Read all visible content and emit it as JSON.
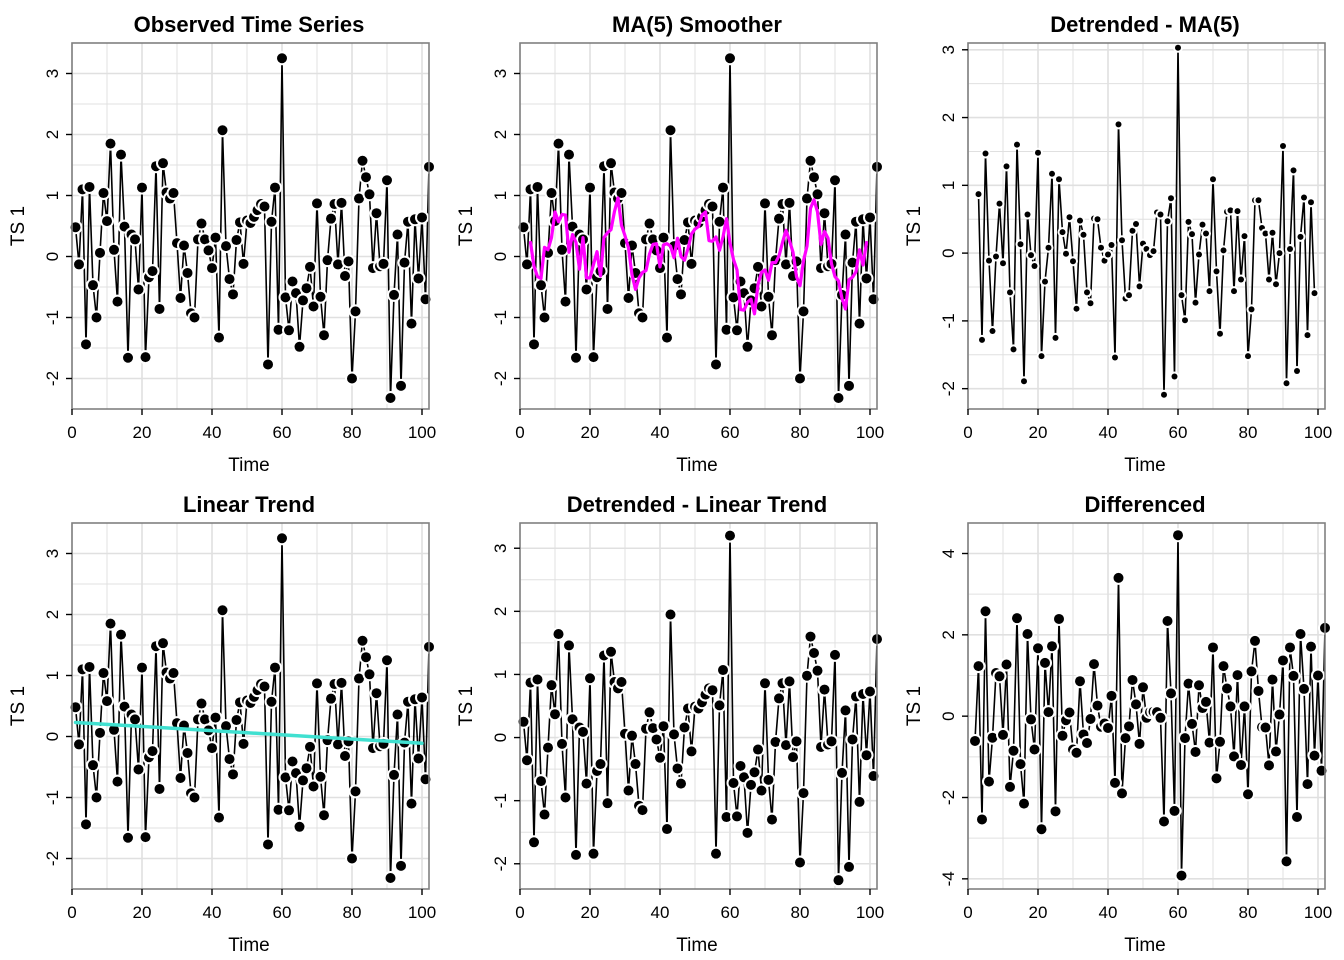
{
  "figure": {
    "background": "#ffffff",
    "grid_color": "#e0e0e0",
    "frame_color": "#808080"
  },
  "chart_data": [
    {
      "type": "line",
      "title": "Observed Time Series",
      "xlabel": "Time",
      "ylabel": "TS 1",
      "xlim": [
        0,
        102
      ],
      "ylim": [
        -2.5,
        3.5
      ],
      "xticks": [
        0,
        20,
        40,
        60,
        80,
        100
      ],
      "yticks": [
        -2,
        -1,
        0,
        1,
        2,
        3
      ],
      "grid": true,
      "marker": "point-large",
      "x_start": 1,
      "series": [
        {
          "values": [
            0.48,
            -0.13,
            1.1,
            -1.44,
            1.14,
            -0.47,
            -1.0,
            0.06,
            1.04,
            0.58,
            1.85,
            0.11,
            -0.74,
            1.67,
            0.49,
            -1.66,
            0.36,
            0.28,
            -0.54,
            1.13,
            -1.65,
            -0.34,
            -0.24,
            1.48,
            -0.86,
            1.53,
            1.05,
            0.95,
            1.04,
            0.22,
            -0.68,
            0.18,
            -0.27,
            -0.93,
            -1.0,
            0.28,
            0.54,
            0.28,
            0.1,
            -0.19,
            0.31,
            -1.33,
            2.07,
            0.17,
            -0.37,
            -0.62,
            0.27,
            0.56,
            -0.12,
            0.59,
            0.55,
            0.65,
            0.76,
            0.86,
            0.82,
            -1.77,
            0.57,
            1.13,
            -1.2,
            3.25,
            -0.67,
            -1.21,
            -0.41,
            -0.6,
            -1.48,
            -0.72,
            -0.52,
            -0.17,
            -0.82,
            0.87,
            -0.66,
            -1.29,
            -0.06,
            0.62,
            0.86,
            -0.13,
            0.88,
            -0.32,
            -0.08,
            -2.0,
            -0.9,
            0.95,
            1.57,
            1.3,
            1.02,
            -0.19,
            0.71,
            -0.16,
            -0.12,
            1.25,
            -2.32,
            -0.63,
            0.36,
            -2.12,
            -0.1,
            0.57,
            -1.1,
            0.61,
            -0.36,
            0.64,
            -0.7,
            1.47
          ],
          "color": "#000000"
        }
      ]
    },
    {
      "type": "line",
      "title": "MA(5) Smoother",
      "xlabel": "Time",
      "ylabel": "TS 1",
      "xlim": [
        0,
        102
      ],
      "ylim": [
        -2.5,
        3.5
      ],
      "xticks": [
        0,
        20,
        40,
        60,
        80,
        100
      ],
      "yticks": [
        -2,
        -1,
        0,
        1,
        2,
        3
      ],
      "grid": true,
      "marker": "point-large",
      "x_start": 1,
      "series": [
        {
          "values": [
            0.48,
            -0.13,
            1.1,
            -1.44,
            1.14,
            -0.47,
            -1.0,
            0.06,
            1.04,
            0.58,
            1.85,
            0.11,
            -0.74,
            1.67,
            0.49,
            -1.66,
            0.36,
            0.28,
            -0.54,
            1.13,
            -1.65,
            -0.34,
            -0.24,
            1.48,
            -0.86,
            1.53,
            1.05,
            0.95,
            1.04,
            0.22,
            -0.68,
            0.18,
            -0.27,
            -0.93,
            -1.0,
            0.28,
            0.54,
            0.28,
            0.1,
            -0.19,
            0.31,
            -1.33,
            2.07,
            0.17,
            -0.37,
            -0.62,
            0.27,
            0.56,
            -0.12,
            0.59,
            0.55,
            0.65,
            0.76,
            0.86,
            0.82,
            -1.77,
            0.57,
            1.13,
            -1.2,
            3.25,
            -0.67,
            -1.21,
            -0.41,
            -0.6,
            -1.48,
            -0.72,
            -0.52,
            -0.17,
            -0.82,
            0.87,
            -0.66,
            -1.29,
            -0.06,
            0.62,
            0.86,
            -0.13,
            0.88,
            -0.32,
            -0.08,
            -2.0,
            -0.9,
            0.95,
            1.57,
            1.3,
            1.02,
            -0.19,
            0.71,
            -0.16,
            -0.12,
            1.25,
            -2.32,
            -0.63,
            0.36,
            -2.12,
            -0.1,
            0.57,
            -1.1,
            0.61,
            -0.36,
            0.64,
            -0.7,
            1.47
          ],
          "color": "#000000"
        },
        {
          "values": [
            null,
            null,
            0.23,
            -0.16,
            -0.33,
            -0.36,
            0.15,
            0.11,
            0.31,
            0.73,
            0.57,
            0.69,
            0.68,
            0.07,
            0.36,
            0.23,
            -0.21,
            0.31,
            -0.35,
            -0.35,
            -0.13,
            0.08,
            -0.32,
            0.31,
            0.39,
            0.44,
            0.74,
            0.96,
            0.51,
            0.34,
            0.14,
            -0.3,
            -0.54,
            -0.35,
            -0.26,
            -0.23,
            0.04,
            0.2,
            0.21,
            -0.17,
            0.19,
            0.21,
            0.17,
            -0.02,
            0.3,
            0.0,
            -0.06,
            0.13,
            0.37,
            0.45,
            0.49,
            0.68,
            0.73,
            0.26,
            0.25,
            0.32,
            0.1,
            0.32,
            0.62,
            0.22,
            -0.05,
            -0.22,
            -0.87,
            -0.88,
            -0.75,
            -0.7,
            -0.94,
            -0.46,
            -0.26,
            -0.22,
            -0.39,
            -0.1,
            -0.1,
            0.01,
            0.23,
            0.43,
            0.26,
            0.07,
            -0.33,
            -0.48,
            -0.07,
            0.17,
            0.79,
            0.93,
            0.73,
            0.2,
            0.41,
            0.3,
            -0.12,
            -0.33,
            -0.4,
            -0.69,
            -0.86,
            -0.38,
            -0.34,
            -0.25,
            0.11,
            -0.14,
            0.23,
            null,
            null
          ],
          "color": "#ff00ff"
        }
      ]
    },
    {
      "type": "line",
      "title": "Detrended - MA(5)",
      "xlabel": "Time",
      "ylabel": "TS 1",
      "xlim": [
        0,
        102
      ],
      "ylim": [
        -2.3,
        3.1
      ],
      "xticks": [
        0,
        20,
        40,
        60,
        80,
        100
      ],
      "yticks": [
        -2,
        -1,
        0,
        1,
        2,
        3
      ],
      "grid": true,
      "marker": "point-small",
      "x_start": 1,
      "series": [
        {
          "values": [
            null,
            null,
            0.87,
            -1.28,
            1.47,
            -0.11,
            -1.15,
            -0.05,
            0.73,
            -0.15,
            1.28,
            -0.58,
            -1.42,
            1.6,
            0.13,
            -1.89,
            0.57,
            -0.03,
            -0.19,
            1.48,
            -1.52,
            -0.42,
            0.08,
            1.17,
            -1.25,
            1.09,
            0.31,
            -0.01,
            0.53,
            -0.12,
            -0.82,
            0.48,
            0.27,
            -0.58,
            -0.74,
            0.51,
            0.5,
            0.08,
            -0.11,
            -0.02,
            0.12,
            -1.54,
            1.9,
            0.19,
            -0.67,
            -0.62,
            0.33,
            0.43,
            -0.49,
            0.14,
            0.06,
            -0.03,
            0.03,
            0.6,
            0.57,
            -2.09,
            0.47,
            0.81,
            -1.82,
            3.03,
            -0.62,
            -0.99,
            0.46,
            0.28,
            -0.73,
            -0.02,
            0.42,
            0.29,
            -0.56,
            1.09,
            -0.27,
            -1.19,
            0.04,
            0.61,
            0.63,
            -0.56,
            0.62,
            -0.39,
            0.25,
            -1.52,
            -0.83,
            0.78,
            0.78,
            0.37,
            0.29,
            -0.39,
            0.3,
            -0.46,
            0.0,
            1.58,
            -1.92,
            0.06,
            1.22,
            -1.74,
            0.24,
            0.82,
            -1.21,
            0.75,
            -0.59,
            null,
            null
          ],
          "color": "#000000"
        }
      ]
    },
    {
      "type": "line",
      "title": "Linear Trend",
      "xlabel": "Time",
      "ylabel": "TS 1",
      "xlim": [
        0,
        102
      ],
      "ylim": [
        -2.5,
        3.5
      ],
      "xticks": [
        0,
        20,
        40,
        60,
        80,
        100
      ],
      "yticks": [
        -2,
        -1,
        0,
        1,
        2,
        3
      ],
      "grid": true,
      "marker": "point-large",
      "x_start": 1,
      "series": [
        {
          "values": [
            0.48,
            -0.13,
            1.1,
            -1.44,
            1.14,
            -0.47,
            -1.0,
            0.06,
            1.04,
            0.58,
            1.85,
            0.11,
            -0.74,
            1.67,
            0.49,
            -1.66,
            0.36,
            0.28,
            -0.54,
            1.13,
            -1.65,
            -0.34,
            -0.24,
            1.48,
            -0.86,
            1.53,
            1.05,
            0.95,
            1.04,
            0.22,
            -0.68,
            0.18,
            -0.27,
            -0.93,
            -1.0,
            0.28,
            0.54,
            0.28,
            0.1,
            -0.19,
            0.31,
            -1.33,
            2.07,
            0.17,
            -0.37,
            -0.62,
            0.27,
            0.56,
            -0.12,
            0.59,
            0.55,
            0.65,
            0.76,
            0.86,
            0.82,
            -1.77,
            0.57,
            1.13,
            -1.2,
            3.25,
            -0.67,
            -1.21,
            -0.41,
            -0.6,
            -1.48,
            -0.72,
            -0.52,
            -0.17,
            -0.82,
            0.87,
            -0.66,
            -1.29,
            -0.06,
            0.62,
            0.86,
            -0.13,
            0.88,
            -0.32,
            -0.08,
            -2.0,
            -0.9,
            0.95,
            1.57,
            1.3,
            1.02,
            -0.19,
            0.71,
            -0.16,
            -0.12,
            1.25,
            -2.32,
            -0.63,
            0.36,
            -2.12,
            -0.1,
            0.57,
            -1.1,
            0.61,
            -0.36,
            0.64,
            -0.7,
            1.47
          ],
          "color": "#000000"
        },
        {
          "type": "trend",
          "x": [
            1,
            100
          ],
          "values": [
            0.23,
            -0.11
          ],
          "color": "#40e0d0"
        }
      ]
    },
    {
      "type": "line",
      "title": "Detrended - Linear Trend",
      "xlabel": "Time",
      "ylabel": "TS 1",
      "xlim": [
        0,
        102
      ],
      "ylim": [
        -2.4,
        3.4
      ],
      "xticks": [
        0,
        20,
        40,
        60,
        80,
        100
      ],
      "yticks": [
        -2,
        -1,
        0,
        1,
        2,
        3
      ],
      "grid": true,
      "marker": "point-large",
      "x_start": 1,
      "series": [
        {
          "values": [
            0.25,
            -0.36,
            0.87,
            -1.66,
            0.92,
            -0.69,
            -1.22,
            -0.16,
            0.83,
            0.37,
            1.64,
            -0.1,
            -0.95,
            1.46,
            0.29,
            -1.86,
            0.16,
            0.09,
            -0.73,
            0.94,
            -1.84,
            -0.53,
            -0.42,
            1.3,
            -1.04,
            1.36,
            0.88,
            0.78,
            0.88,
            0.06,
            -0.84,
            0.03,
            -0.42,
            -1.08,
            -1.15,
            0.14,
            0.4,
            0.15,
            -0.03,
            -0.32,
            0.18,
            -1.45,
            1.95,
            0.05,
            -0.49,
            -0.73,
            0.16,
            0.46,
            -0.22,
            0.49,
            0.46,
            0.56,
            0.68,
            0.78,
            0.75,
            -1.84,
            0.51,
            1.07,
            -1.26,
            3.2,
            -0.72,
            -1.25,
            -0.45,
            -0.63,
            -1.51,
            -0.75,
            -0.55,
            -0.19,
            -0.84,
            0.86,
            -0.67,
            -1.3,
            -0.07,
            0.62,
            0.86,
            -0.12,
            0.89,
            -0.31,
            -0.06,
            -1.98,
            -0.88,
            0.98,
            1.6,
            1.34,
            1.06,
            -0.15,
            0.76,
            -0.11,
            -0.06,
            1.31,
            -2.26,
            -0.56,
            0.43,
            -2.05,
            -0.03,
            0.65,
            -1.02,
            0.69,
            -0.28,
            0.73,
            -0.61,
            1.56
          ],
          "color": "#000000"
        }
      ]
    },
    {
      "type": "line",
      "title": "Differenced",
      "xlabel": "Time",
      "ylabel": "TS 1",
      "xlim": [
        0,
        102
      ],
      "ylim": [
        -4.25,
        4.75
      ],
      "xticks": [
        0,
        20,
        40,
        60,
        80,
        100
      ],
      "yticks": [
        -4,
        -2,
        0,
        2,
        4
      ],
      "grid": true,
      "marker": "point-large",
      "x_start": 2,
      "series": [
        {
          "values": [
            -0.61,
            1.23,
            -2.54,
            2.58,
            -1.61,
            -0.53,
            1.06,
            0.98,
            -0.46,
            1.27,
            -1.74,
            -0.85,
            2.41,
            -1.18,
            -2.15,
            2.02,
            -0.08,
            -0.82,
            1.67,
            -2.78,
            1.31,
            0.1,
            1.72,
            -2.34,
            2.39,
            -0.48,
            -0.1,
            0.09,
            -0.82,
            -0.9,
            0.86,
            -0.45,
            -0.66,
            -0.07,
            1.28,
            0.26,
            -0.26,
            -0.18,
            -0.29,
            0.5,
            -1.64,
            3.4,
            -1.9,
            -0.54,
            -0.25,
            0.89,
            0.29,
            -0.68,
            0.71,
            -0.04,
            0.1,
            0.11,
            0.1,
            -0.04,
            -2.59,
            2.34,
            0.56,
            -2.33,
            4.45,
            -3.92,
            -0.54,
            0.8,
            -0.19,
            -0.88,
            0.76,
            0.2,
            0.35,
            -0.65,
            1.69,
            -1.53,
            -0.63,
            1.23,
            0.68,
            0.24,
            -0.99,
            1.01,
            -1.2,
            0.24,
            -1.92,
            1.1,
            1.85,
            0.62,
            -0.27,
            -0.28,
            -1.21,
            0.9,
            -0.87,
            0.04,
            1.37,
            -3.57,
            1.69,
            0.99,
            -2.48,
            2.02,
            0.67,
            -1.67,
            1.71,
            -0.97,
            1.0,
            -1.34,
            2.17
          ],
          "color": "#000000"
        }
      ]
    }
  ]
}
